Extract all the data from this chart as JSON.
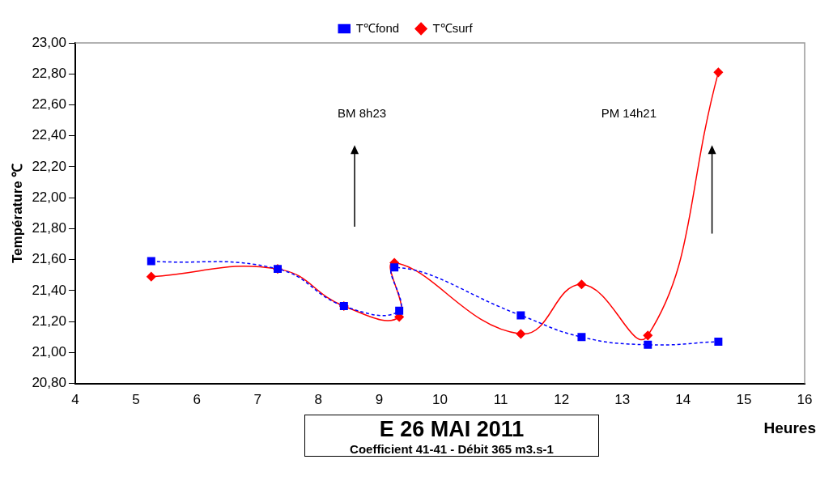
{
  "chart_data": {
    "type": "line",
    "title": "E 26 MAI 2011",
    "subtitle": "Coefficient 41-41  - Débit 365 m3.s-1",
    "xlabel": "Heures",
    "ylabel": "Température ℃",
    "x": [
      5.25,
      7.33,
      8.42,
      9.33,
      9.25,
      11.33,
      12.33,
      13.42,
      14.58
    ],
    "series": [
      {
        "name": "T℃surf",
        "color": "#ff0000",
        "values": [
          21.49,
          21.54,
          21.3,
          21.23,
          21.58,
          21.12,
          21.44,
          21.11,
          22.81
        ],
        "marker": "diamond",
        "line_style": "solid"
      },
      {
        "name": "T℃fond",
        "color": "#0000ff",
        "values": [
          21.59,
          21.54,
          21.3,
          21.27,
          21.55,
          21.24,
          21.1,
          21.05,
          21.07
        ],
        "marker": "square",
        "line_style": "dashed"
      }
    ],
    "xlim": [
      4,
      16
    ],
    "xticks": [
      4,
      5,
      6,
      7,
      8,
      9,
      10,
      11,
      12,
      13,
      14,
      15,
      16
    ],
    "ylim": [
      20.8,
      23
    ],
    "yticks": [
      {
        "value": 20.8,
        "label": "20,80"
      },
      {
        "value": 21,
        "label": "21,00"
      },
      {
        "value": 21.2,
        "label": "21,20"
      },
      {
        "value": 21.4,
        "label": "21,40"
      },
      {
        "value": 21.6,
        "label": "21,60"
      },
      {
        "value": 21.8,
        "label": "21,80"
      },
      {
        "value": 22,
        "label": "22,00"
      },
      {
        "value": 22.2,
        "label": "22,20"
      },
      {
        "value": 22.4,
        "label": "22,40"
      },
      {
        "value": 22.6,
        "label": "22,60"
      },
      {
        "value": 22.8,
        "label": "22,80"
      },
      {
        "value": 23,
        "label": "23,00"
      }
    ],
    "annotations": [
      "BM 8h23",
      "PM 14h21"
    ],
    "grid": false,
    "legend": "top"
  }
}
